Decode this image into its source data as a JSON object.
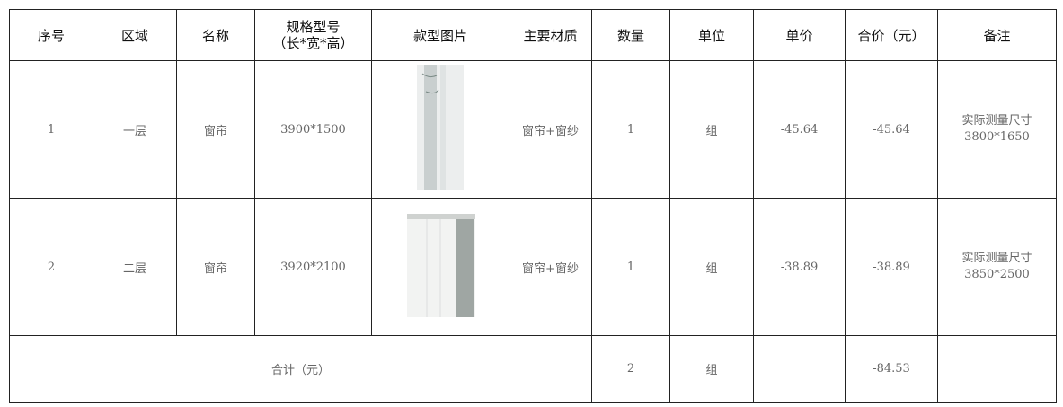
{
  "table": {
    "header": [
      "序号",
      "区域",
      "名称",
      [
        "规格型号",
        "（长*宽*高）"
      ],
      "款型图片",
      "主要材质",
      "数量",
      "单位",
      "单价",
      "合价（元）",
      "备注"
    ],
    "rows": [
      {
        "no": "1",
        "area": "一层",
        "name": "窗帘",
        "spec": "3900*1500",
        "material": "窗帘+窗纱",
        "qty": "1",
        "unit": "组",
        "price": "-45.64",
        "total": "-45.64",
        "note": [
          "实际测量尺寸",
          "3800*1650"
        ]
      },
      {
        "no": "2",
        "area": "二层",
        "name": "窗帘",
        "spec": "3920*2100",
        "material": "窗帘+窗纱",
        "qty": "1",
        "unit": "组",
        "price": "-38.89",
        "total": "-38.89",
        "note": [
          "实际测量尺寸",
          "3850*2500"
        ]
      }
    ],
    "summary": {
      "label": "合计（元）",
      "qty": "2",
      "unit": "组",
      "total": "-84.53"
    }
  }
}
